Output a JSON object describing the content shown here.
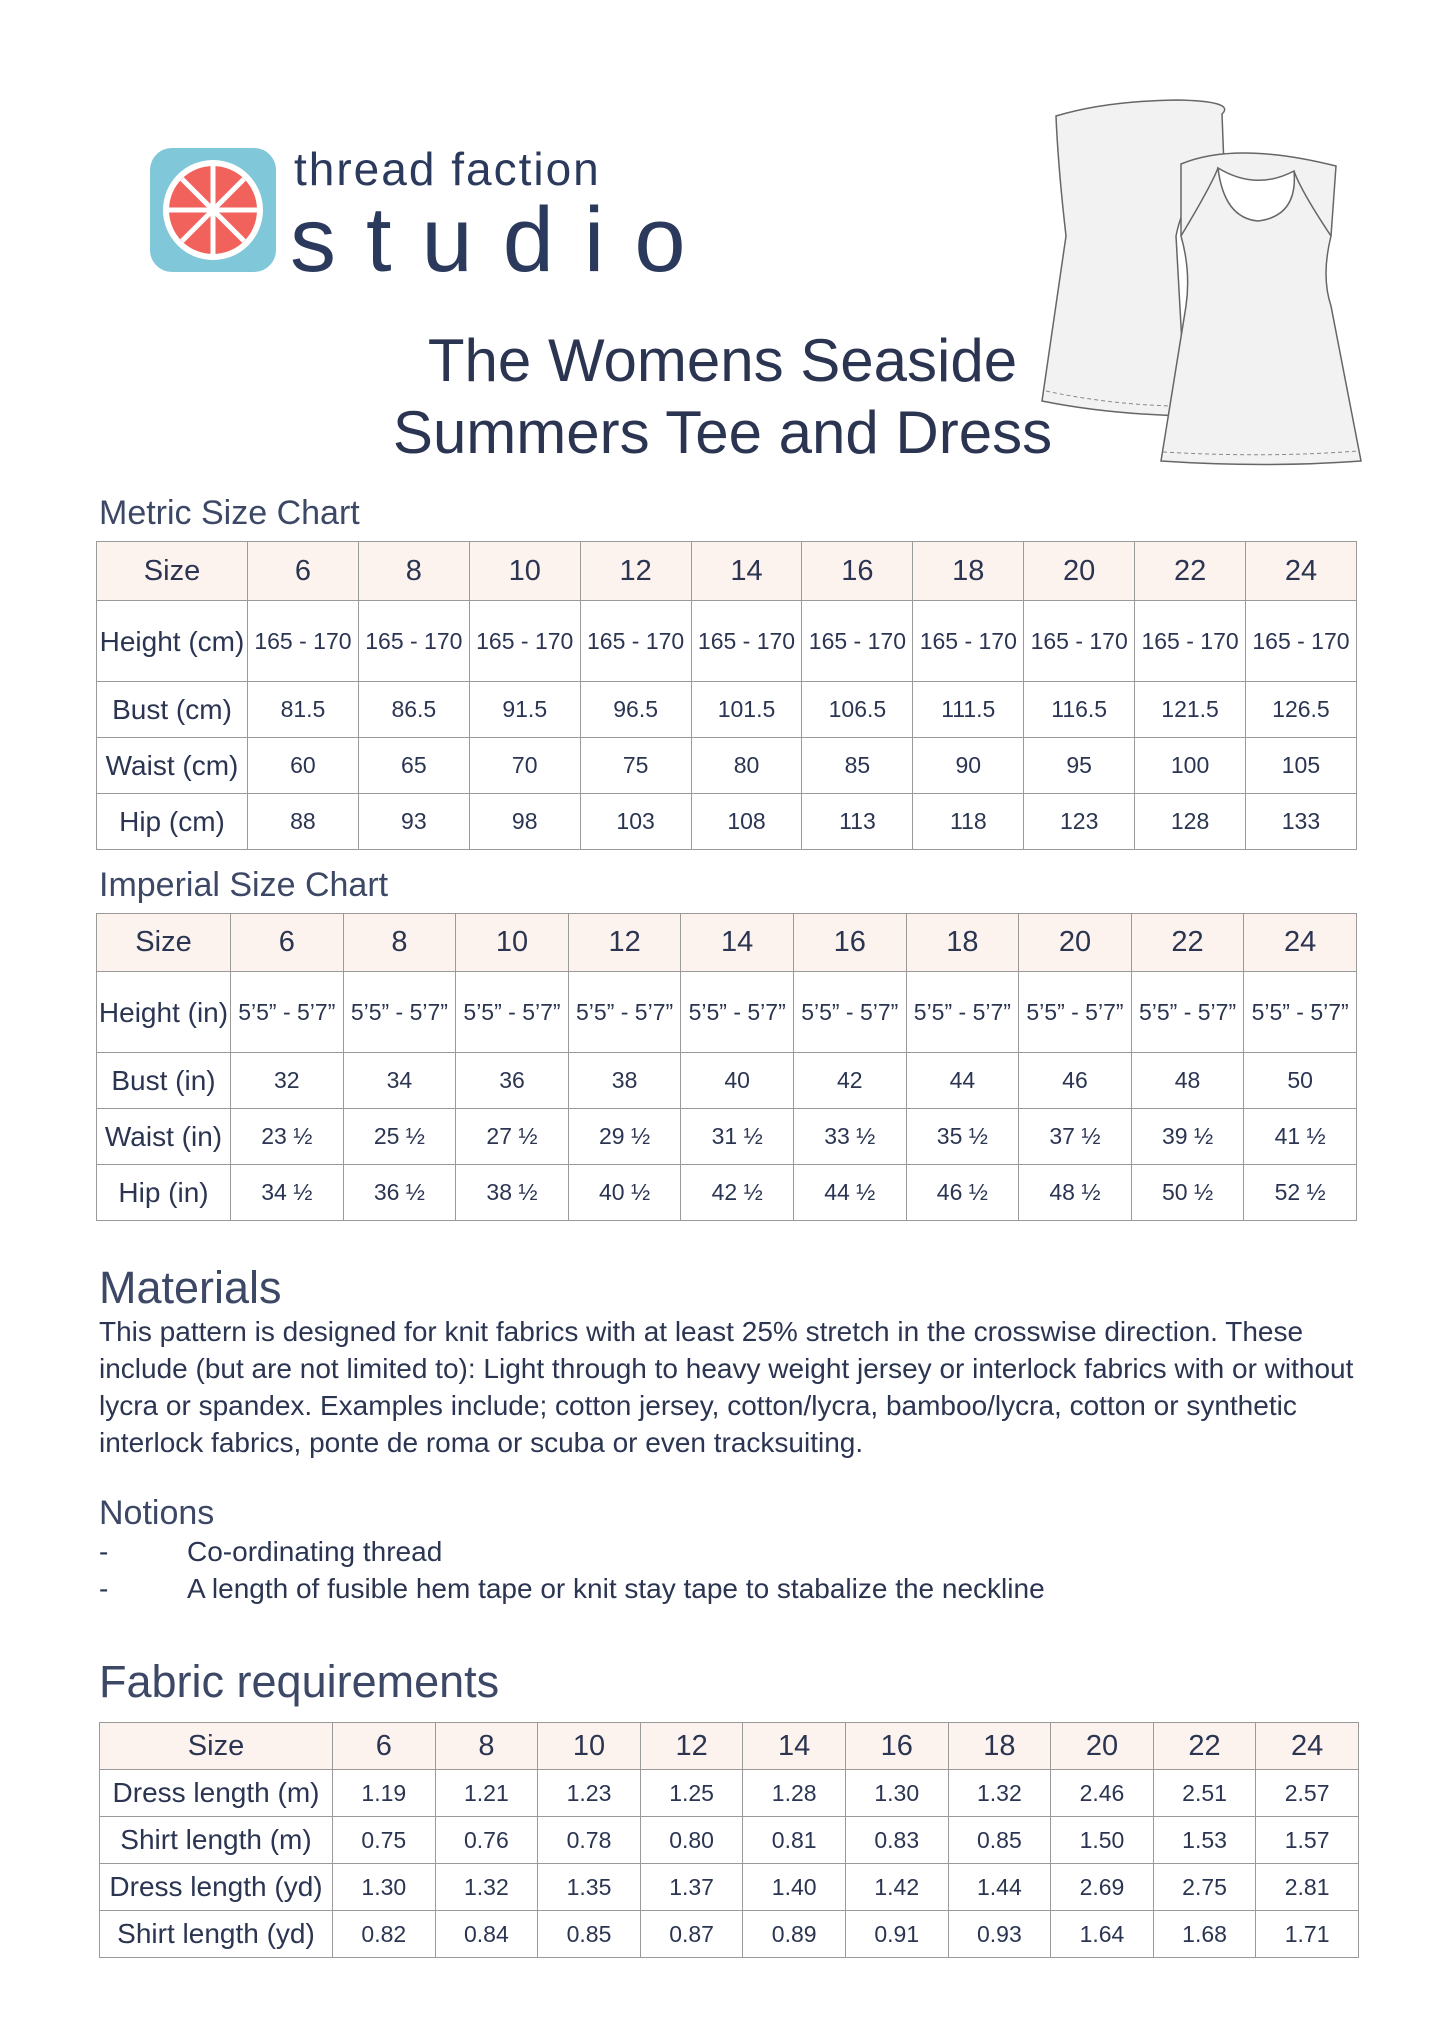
{
  "header": {
    "brand_line1": "thread faction",
    "brand_line2": "studio",
    "title_line1": "The Womens Seaside",
    "title_line2": "Summers Tee and Dress"
  },
  "metric_chart": {
    "title": "Metric Size Chart",
    "columns": [
      "Size",
      "6",
      "8",
      "10",
      "12",
      "14",
      "16",
      "18",
      "20",
      "22",
      "24"
    ],
    "rows": [
      [
        "Height (cm)",
        "165 - 170",
        "165 - 170",
        "165 - 170",
        "165 - 170",
        "165 - 170",
        "165 - 170",
        "165 - 170",
        "165 - 170",
        "165 - 170",
        "165 - 170"
      ],
      [
        "Bust (cm)",
        "81.5",
        "86.5",
        "91.5",
        "96.5",
        "101.5",
        "106.5",
        "111.5",
        "116.5",
        "121.5",
        "126.5"
      ],
      [
        "Waist (cm)",
        "60",
        "65",
        "70",
        "75",
        "80",
        "85",
        "90",
        "95",
        "100",
        "105"
      ],
      [
        "Hip (cm)",
        "88",
        "93",
        "98",
        "103",
        "108",
        "113",
        "118",
        "123",
        "128",
        "133"
      ]
    ]
  },
  "imperial_chart": {
    "title": "Imperial Size Chart",
    "columns": [
      "Size",
      "6",
      "8",
      "10",
      "12",
      "14",
      "16",
      "18",
      "20",
      "22",
      "24"
    ],
    "rows": [
      [
        "Height (in)",
        "5’5” - 5’7”",
        "5’5” - 5’7”",
        "5’5” - 5’7”",
        "5’5” - 5’7”",
        "5’5” - 5’7”",
        "5’5” - 5’7”",
        "5’5” - 5’7”",
        "5’5” - 5’7”",
        "5’5” - 5’7”",
        "5’5” - 5’7”"
      ],
      [
        "Bust (in)",
        "32",
        "34",
        "36",
        "38",
        "40",
        "42",
        "44",
        "46",
        "48",
        "50"
      ],
      [
        "Waist (in)",
        "23 ½",
        "25 ½",
        "27 ½",
        "29 ½",
        "31 ½",
        "33 ½",
        "35 ½",
        "37 ½",
        "39 ½",
        "41 ½"
      ],
      [
        "Hip (in)",
        "34 ½",
        "36 ½",
        "38 ½",
        "40 ½",
        "42 ½",
        "44 ½",
        "46 ½",
        "48 ½",
        "50 ½",
        "52 ½"
      ]
    ]
  },
  "materials": {
    "heading": "Materials",
    "text": "This pattern is designed for knit fabrics with at least 25% stretch in the crosswise direction. These include (but are not limited to): Light through to heavy weight jersey or interlock fabrics with or without lycra or spandex. Examples include; cotton jersey, cotton/lycra, bamboo/lycra, cotton or synthetic interlock fabrics, ponte de roma or scuba or even tracksuiting."
  },
  "notions": {
    "heading": "Notions",
    "items": [
      {
        "bullet": "-",
        "text": "Co-ordinating thread"
      },
      {
        "bullet": "-",
        "text": "A length of fusible hem tape or knit stay tape to stabalize the neckline"
      }
    ]
  },
  "fabric_requirements": {
    "title": "Fabric requirements",
    "columns": [
      "Size",
      "6",
      "8",
      "10",
      "12",
      "14",
      "16",
      "18",
      "20",
      "22",
      "24"
    ],
    "rows": [
      [
        "Dress length (m)",
        "1.19",
        "1.21",
        "1.23",
        "1.25",
        "1.28",
        "1.30",
        "1.32",
        "2.46",
        "2.51",
        "2.57"
      ],
      [
        "Shirt length (m)",
        "0.75",
        "0.76",
        "0.78",
        "0.80",
        "0.81",
        "0.83",
        "0.85",
        "1.50",
        "1.53",
        "1.57"
      ],
      [
        "Dress length (yd)",
        "1.30",
        "1.32",
        "1.35",
        "1.37",
        "1.40",
        "1.42",
        "1.44",
        "2.69",
        "2.75",
        "2.81"
      ],
      [
        "Shirt length (yd)",
        "0.82",
        "0.84",
        "0.85",
        "0.87",
        "0.89",
        "0.91",
        "0.93",
        "1.64",
        "1.68",
        "1.71"
      ]
    ]
  }
}
